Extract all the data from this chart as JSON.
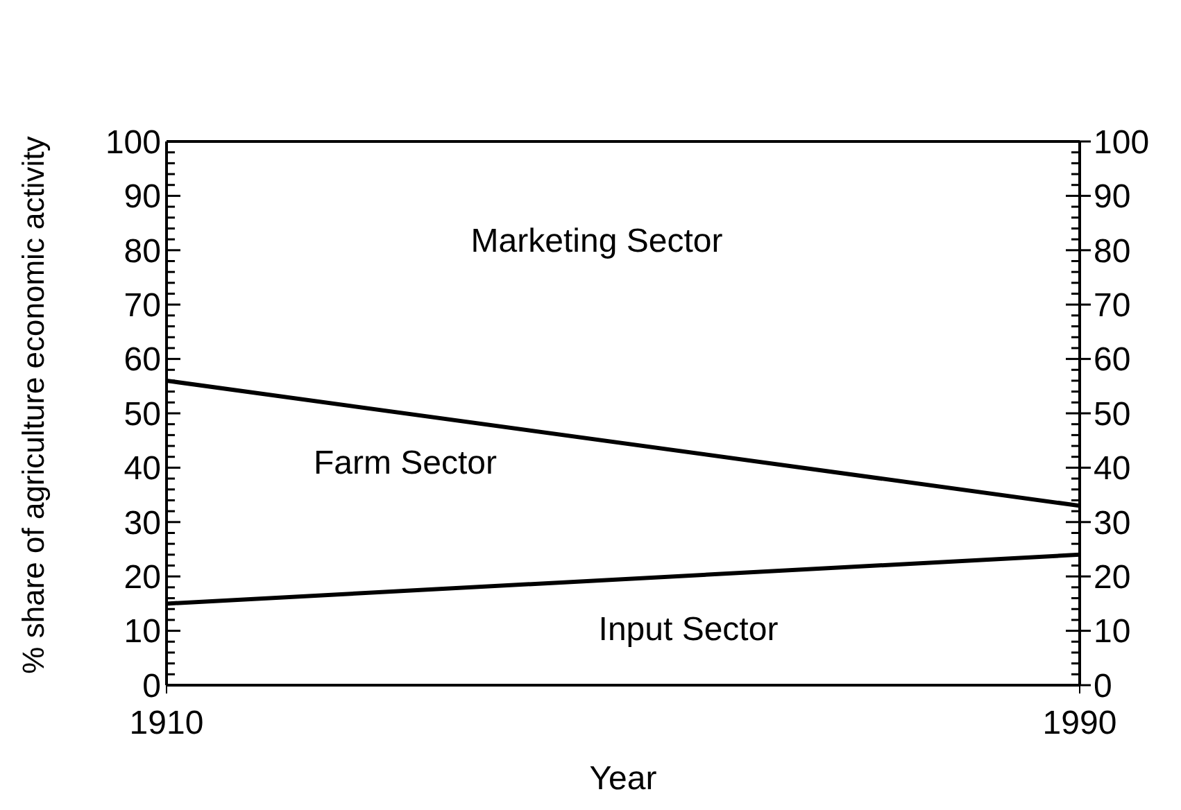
{
  "chart_data": {
    "type": "line",
    "xlabel": "Year",
    "ylabel": "% share of agriculture economic activity",
    "x": [
      1910,
      1990
    ],
    "xlim": [
      1910,
      1990
    ],
    "xticks": [
      1910,
      1990
    ],
    "ylim": [
      0,
      100
    ],
    "yticks": [
      0,
      {
        "value": 2,
        "label": null
      },
      {
        "value": 4,
        "label": null
      },
      {
        "value": 6,
        "label": null
      },
      {
        "value": 8,
        "label": null
      },
      10,
      {
        "value": 12,
        "label": null
      },
      {
        "value": 14,
        "label": null
      },
      {
        "value": 16,
        "label": null
      },
      {
        "value": 18,
        "label": null
      },
      20,
      {
        "value": 22,
        "label": null
      },
      {
        "value": 24,
        "label": null
      },
      {
        "value": 26,
        "label": null
      },
      {
        "value": 28,
        "label": null
      },
      30,
      {
        "value": 32,
        "label": null
      },
      {
        "value": 34,
        "label": null
      },
      {
        "value": 36,
        "label": null
      },
      {
        "value": 38,
        "label": null
      },
      40,
      {
        "value": 42,
        "label": null
      },
      {
        "value": 44,
        "label": null
      },
      {
        "value": 46,
        "label": null
      },
      {
        "value": 48,
        "label": null
      },
      50,
      {
        "value": 52,
        "label": null
      },
      {
        "value": 54,
        "label": null
      },
      {
        "value": 56,
        "label": null
      },
      {
        "value": 58,
        "label": null
      },
      60,
      {
        "value": 62,
        "label": null
      },
      {
        "value": 64,
        "label": null
      },
      {
        "value": 66,
        "label": null
      },
      {
        "value": 68,
        "label": null
      },
      70,
      {
        "value": 72,
        "label": null
      },
      {
        "value": 74,
        "label": null
      },
      {
        "value": 76,
        "label": null
      },
      {
        "value": 78,
        "label": null
      },
      80,
      {
        "value": 82,
        "label": null
      },
      {
        "value": 84,
        "label": null
      },
      {
        "value": 86,
        "label": null
      },
      {
        "value": 88,
        "label": null
      },
      90,
      {
        "value": 92,
        "label": null
      },
      {
        "value": 94,
        "label": null
      },
      {
        "value": 96,
        "label": null
      },
      {
        "value": 98,
        "label": null
      },
      100
    ],
    "y2lim": [
      0,
      100
    ],
    "y2ticks": [
      0,
      {
        "value": 2,
        "label": null
      },
      {
        "value": 4,
        "label": null
      },
      {
        "value": 6,
        "label": null
      },
      {
        "value": 8,
        "label": null
      },
      10,
      {
        "value": 12,
        "label": null
      },
      {
        "value": 14,
        "label": null
      },
      {
        "value": 16,
        "label": null
      },
      {
        "value": 18,
        "label": null
      },
      20,
      {
        "value": 22,
        "label": null
      },
      {
        "value": 24,
        "label": null
      },
      {
        "value": 26,
        "label": null
      },
      {
        "value": 28,
        "label": null
      },
      30,
      {
        "value": 32,
        "label": null
      },
      {
        "value": 34,
        "label": null
      },
      {
        "value": 36,
        "label": null
      },
      {
        "value": 38,
        "label": null
      },
      40,
      {
        "value": 42,
        "label": null
      },
      {
        "value": 44,
        "label": null
      },
      {
        "value": 46,
        "label": null
      },
      {
        "value": 48,
        "label": null
      },
      50,
      {
        "value": 52,
        "label": null
      },
      {
        "value": 54,
        "label": null
      },
      {
        "value": 56,
        "label": null
      },
      {
        "value": 58,
        "label": null
      },
      60,
      {
        "value": 62,
        "label": null
      },
      {
        "value": 64,
        "label": null
      },
      {
        "value": 66,
        "label": null
      },
      {
        "value": 68,
        "label": null
      },
      70,
      {
        "value": 72,
        "label": null
      },
      {
        "value": 74,
        "label": null
      },
      {
        "value": 76,
        "label": null
      },
      {
        "value": 78,
        "label": null
      },
      80,
      {
        "value": 82,
        "label": null
      },
      {
        "value": 84,
        "label": null
      },
      {
        "value": 86,
        "label": null
      },
      {
        "value": 88,
        "label": null
      },
      90,
      {
        "value": 92,
        "label": null
      },
      {
        "value": 94,
        "label": null
      },
      {
        "value": 96,
        "label": null
      },
      {
        "value": 98,
        "label": null
      },
      100
    ],
    "marker": "none",
    "line_style": "solid",
    "series": [
      {
        "color": "#000000",
        "values": [
          15,
          24
        ]
      },
      {
        "color": "#000000",
        "values": [
          56,
          33
        ]
      }
    ],
    "annotations": [
      "Marketing Sector",
      "Farm Sector",
      "Input Sector"
    ]
  }
}
